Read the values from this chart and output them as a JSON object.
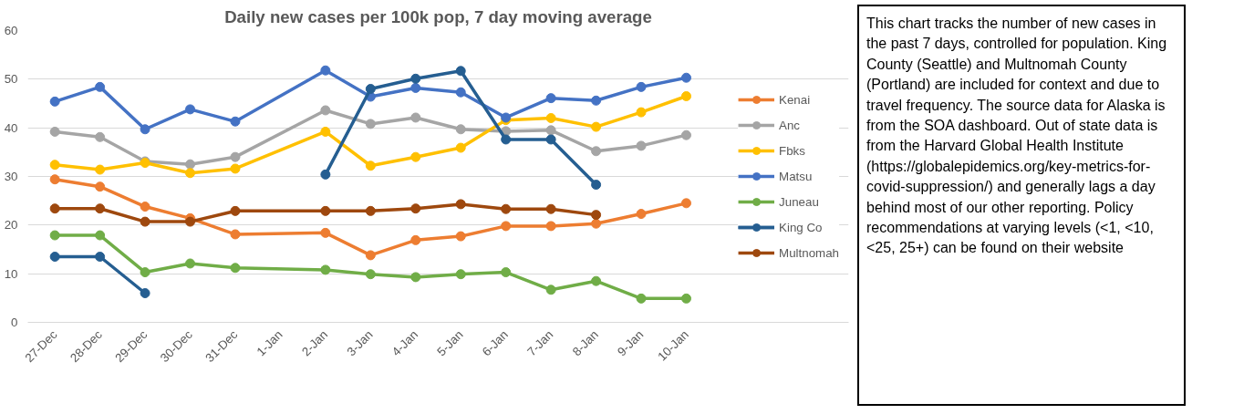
{
  "chart_data": {
    "type": "line",
    "title": "Daily new cases per 100k pop, 7 day moving average",
    "categories": [
      "27-Dec",
      "28-Dec",
      "29-Dec",
      "30-Dec",
      "31-Dec",
      "1-Jan",
      "2-Jan",
      "3-Jan",
      "4-Jan",
      "5-Jan",
      "6-Jan",
      "7-Jan",
      "8-Jan",
      "9-Jan",
      "10-Jan"
    ],
    "series": [
      {
        "name": "Kenai",
        "color": "#ed7d31",
        "values": [
          29.4,
          27.9,
          23.8,
          21.4,
          18.1,
          null,
          18.4,
          13.8,
          16.9,
          17.7,
          19.8,
          19.8,
          20.3,
          22.3,
          24.5
        ]
      },
      {
        "name": "Anc",
        "color": "#a5a5a5",
        "values": [
          39.2,
          38.1,
          33.1,
          32.5,
          34.0,
          null,
          43.6,
          40.8,
          42.1,
          39.7,
          39.3,
          39.5,
          35.2,
          36.3,
          38.5
        ]
      },
      {
        "name": "Fbks",
        "color": "#ffc000",
        "values": [
          32.4,
          31.4,
          32.8,
          30.7,
          31.6,
          null,
          39.2,
          32.2,
          34.0,
          35.9,
          41.6,
          42.0,
          40.2,
          43.2,
          46.5
        ]
      },
      {
        "name": "Matsu",
        "color": "#4472c4",
        "values": [
          45.4,
          48.4,
          39.7,
          43.8,
          41.3,
          null,
          51.8,
          46.4,
          48.2,
          47.3,
          42.1,
          46.1,
          45.6,
          48.4,
          50.3
        ]
      },
      {
        "name": "Juneau",
        "color": "#70ad47",
        "values": [
          17.9,
          17.9,
          10.3,
          12.1,
          11.2,
          null,
          10.8,
          9.9,
          9.3,
          9.9,
          10.3,
          6.7,
          8.5,
          4.9,
          4.9
        ]
      },
      {
        "name": "King Co",
        "color": "#255e91",
        "values": [
          13.5,
          13.5,
          6.0,
          null,
          null,
          null,
          30.4,
          48.0,
          50.1,
          51.7,
          37.6,
          37.6,
          28.3,
          null,
          null
        ]
      },
      {
        "name": "Multnomah",
        "color": "#9e480e",
        "values": [
          23.4,
          23.4,
          20.7,
          20.7,
          22.9,
          null,
          22.9,
          22.9,
          23.4,
          24.3,
          23.3,
          23.3,
          22.1,
          null,
          null
        ]
      }
    ],
    "ylim": [
      0,
      60
    ],
    "yticks": [
      0,
      10,
      20,
      30,
      40,
      50,
      60
    ],
    "grid": "y",
    "legend": "right",
    "marker": "circle",
    "line_style": "solid",
    "annotations": [
      "This chart tracks the number of new cases in the past 7 days, controlled for population.  King County (Seattle) and Multnomah County (Portland) are included for context and due to travel frequency.  The source data for Alaska is from the SOA dashboard.  Out of state data is from the Harvard Global Health Institute (https://globalepidemics.org/key-metrics-for-covid-suppression/) and generally lags a day behind most of our other reporting.  Policy recommendations at varying levels (<1, <10, <25, 25+) can be found on their website"
    ]
  }
}
